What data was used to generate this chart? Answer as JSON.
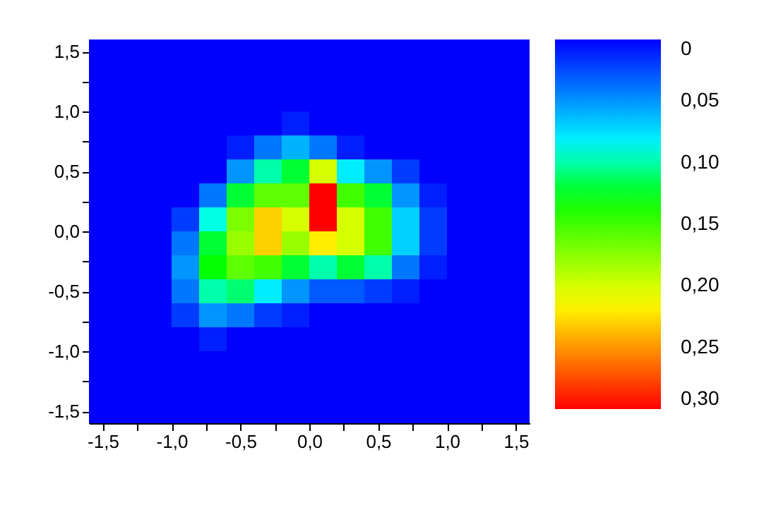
{
  "chart_data": {
    "type": "heatmap",
    "x": [
      -1.5,
      -1.3,
      -1.1,
      -0.9,
      -0.7,
      -0.5,
      -0.3,
      -0.1,
      0.1,
      0.3,
      0.5,
      0.7,
      0.9,
      1.1,
      1.3,
      1.5
    ],
    "y": [
      1.5,
      1.3,
      1.1,
      0.9,
      0.7,
      0.5,
      0.3,
      0.1,
      -0.1,
      -0.3,
      -0.5,
      -0.7,
      -0.9,
      -1.1,
      -1.3,
      -1.5
    ],
    "cells": [
      [
        0,
        0,
        0,
        0,
        0,
        0,
        0,
        0,
        0,
        0,
        0,
        0,
        0,
        0,
        0,
        0
      ],
      [
        0,
        0,
        0,
        0,
        0,
        0,
        0,
        0,
        0,
        0,
        0,
        0,
        0,
        0,
        0,
        0
      ],
      [
        0,
        0,
        0,
        0,
        0,
        0,
        0,
        0,
        0,
        0,
        0,
        0,
        0,
        0,
        0,
        0
      ],
      [
        0,
        0,
        0,
        0,
        0,
        0,
        0,
        0.01,
        0,
        0,
        0,
        0,
        0,
        0,
        0,
        0
      ],
      [
        0,
        0,
        0,
        0,
        0,
        0.01,
        0.04,
        0.06,
        0.04,
        0.01,
        0,
        0,
        0,
        0,
        0,
        0
      ],
      [
        0,
        0,
        0,
        0,
        0,
        0.05,
        0.1,
        0.12,
        0.2,
        0.08,
        0.05,
        0.02,
        0,
        0,
        0,
        0
      ],
      [
        0,
        0,
        0,
        0,
        0.04,
        0.12,
        0.16,
        0.16,
        0.3,
        0.15,
        0.12,
        0.05,
        0.01,
        0,
        0,
        0
      ],
      [
        0,
        0,
        0,
        0.02,
        0.09,
        0.17,
        0.23,
        0.2,
        0.3,
        0.2,
        0.15,
        0.07,
        0.02,
        0,
        0,
        0
      ],
      [
        0,
        0,
        0,
        0.04,
        0.12,
        0.18,
        0.23,
        0.18,
        0.22,
        0.2,
        0.15,
        0.07,
        0.02,
        0,
        0,
        0
      ],
      [
        0,
        0,
        0,
        0.05,
        0.13,
        0.16,
        0.15,
        0.12,
        0.1,
        0.12,
        0.1,
        0.04,
        0.01,
        0,
        0,
        0
      ],
      [
        0,
        0,
        0,
        0.04,
        0.1,
        0.11,
        0.08,
        0.05,
        0.03,
        0.03,
        0.02,
        0.01,
        0,
        0,
        0,
        0
      ],
      [
        0,
        0,
        0,
        0.02,
        0.05,
        0.04,
        0.02,
        0.01,
        0,
        0,
        0,
        0,
        0,
        0,
        0,
        0
      ],
      [
        0,
        0,
        0,
        0,
        0.01,
        0,
        0,
        0,
        0,
        0,
        0,
        0,
        0,
        0,
        0,
        0
      ],
      [
        0,
        0,
        0,
        0,
        0,
        0,
        0,
        0,
        0,
        0,
        0,
        0,
        0,
        0,
        0,
        0
      ],
      [
        0,
        0,
        0,
        0,
        0,
        0,
        0,
        0,
        0,
        0,
        0,
        0,
        0,
        0,
        0,
        0
      ],
      [
        0,
        0,
        0,
        0,
        0,
        0,
        0,
        0,
        0,
        0,
        0,
        0,
        0,
        0,
        0,
        0
      ]
    ],
    "colors": [
      "#0000ff",
      "#0080ff",
      "#00ffff",
      "#00ff00",
      "#80ff00",
      "#ffff00",
      "#ff8000",
      "#ff0000"
    ],
    "clim": [
      0,
      0.3
    ],
    "cticks": [
      {
        "value": 0,
        "label": "0"
      },
      {
        "value": 0.05,
        "label": "0,05"
      },
      {
        "value": 0.1,
        "label": "0,10"
      },
      {
        "value": 0.15,
        "label": "0,15"
      },
      {
        "value": 0.2,
        "label": "0,20"
      },
      {
        "value": 0.25,
        "label": "0,25"
      },
      {
        "value": 0.3,
        "label": "0,30"
      }
    ],
    "xlim": [
      -1.6,
      1.6
    ],
    "ylim": [
      -1.6,
      1.6
    ],
    "xticks": [
      {
        "value": -1.5,
        "label": "-1,5"
      },
      {
        "value": -1.25,
        "label": null
      },
      {
        "value": -1,
        "label": "-1,0"
      },
      {
        "value": -0.75,
        "label": null
      },
      {
        "value": -0.5,
        "label": "-0,5"
      },
      {
        "value": -0.25,
        "label": null
      },
      {
        "value": 0,
        "label": "0,0"
      },
      {
        "value": 0.25,
        "label": null
      },
      {
        "value": 0.5,
        "label": "0,5"
      },
      {
        "value": 0.75,
        "label": null
      },
      {
        "value": 1,
        "label": "1,0"
      },
      {
        "value": 1.25,
        "label": null
      },
      {
        "value": 1.5,
        "label": "1,5"
      }
    ],
    "yticks": [
      {
        "value": -1.5,
        "label": "-1,5"
      },
      {
        "value": -1.25,
        "label": null
      },
      {
        "value": -1,
        "label": "-1,0"
      },
      {
        "value": -0.75,
        "label": null
      },
      {
        "value": -0.5,
        "label": "-0,5"
      },
      {
        "value": -0.25,
        "label": null
      },
      {
        "value": 0,
        "label": "0,0"
      },
      {
        "value": 0.25,
        "label": null
      },
      {
        "value": 0.5,
        "label": "0,5"
      },
      {
        "value": 0.75,
        "label": null
      },
      {
        "value": 1,
        "label": "1,0"
      },
      {
        "value": 1.25,
        "label": null
      },
      {
        "value": 1.5,
        "label": "1,5"
      }
    ]
  }
}
